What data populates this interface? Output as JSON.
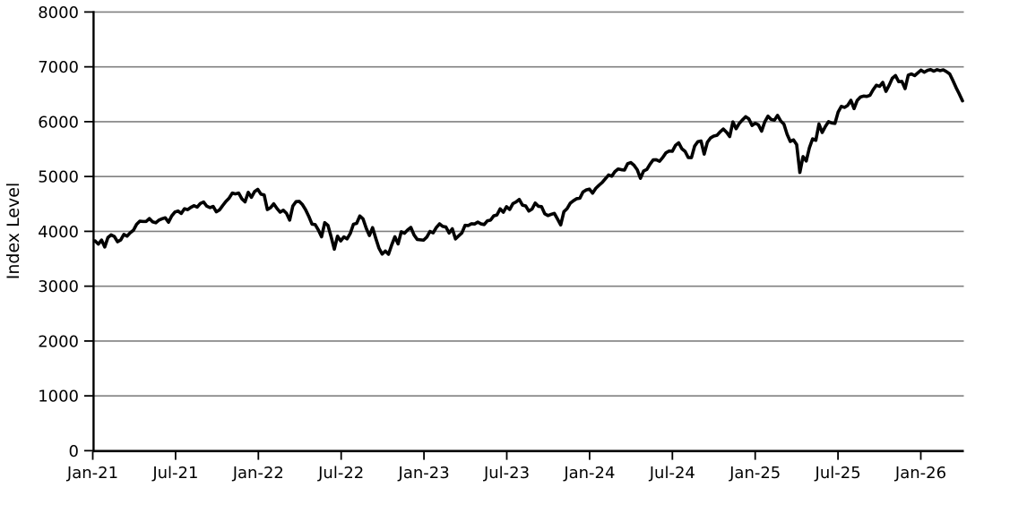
{
  "figure": {
    "background_color": "#ffffff"
  },
  "chart_data": {
    "type": "line",
    "title": "",
    "xlabel": "",
    "ylabel": "Index Level",
    "legend": null,
    "grid": "horizontal",
    "line_color": "#000000",
    "grid_color": "#808080",
    "axis_color": "#000000",
    "ylim": [
      0,
      8000
    ],
    "y_tick_values": [
      0,
      1000,
      2000,
      3000,
      4000,
      5000,
      6000,
      7000,
      8000
    ],
    "y_tick_labels": [
      "0",
      "1000",
      "2000",
      "3000",
      "4000",
      "5000",
      "6000",
      "7000",
      "8000"
    ],
    "x_tick_labels": [
      "Jan-21",
      "Jul-21",
      "Jan-22",
      "Jul-22",
      "Jan-23",
      "Jul-23",
      "Jan-24",
      "Jul-24",
      "Jan-25",
      "Jul-25",
      "Jan-26"
    ],
    "x_frequency": "weekly",
    "x_start": "Jan-21",
    "values": [
      3825,
      3768,
      3841,
      3714,
      3887,
      3935,
      3907,
      3811,
      3842,
      3943,
      3913,
      3975,
      4020,
      4129,
      4185,
      4180,
      4181,
      4233,
      4174,
      4156,
      4204,
      4230,
      4247,
      4166,
      4281,
      4352,
      4370,
      4327,
      4412,
      4395,
      4437,
      4468,
      4442,
      4509,
      4535,
      4459,
      4433,
      4455,
      4357,
      4391,
      4471,
      4545,
      4605,
      4698,
      4683,
      4698,
      4594,
      4538,
      4712,
      4621,
      4725,
      4766,
      4677,
      4663,
      4398,
      4432,
      4501,
      4419,
      4349,
      4385,
      4329,
      4204,
      4463,
      4543,
      4546,
      4488,
      4393,
      4272,
      4132,
      4123,
      4024,
      3901,
      4158,
      4109,
      3901,
      3675,
      3912,
      3825,
      3899,
      3863,
      3962,
      4130,
      4145,
      4280,
      4228,
      4058,
      3924,
      4067,
      3873,
      3693,
      3586,
      3640,
      3583,
      3753,
      3901,
      3771,
      3993,
      3965,
      4026,
      4072,
      3934,
      3852,
      3845,
      3839,
      3895,
      3999,
      3973,
      4071,
      4136,
      4090,
      4079,
      3970,
      4046,
      3862,
      3917,
      3971,
      4109,
      4105,
      4138,
      4134,
      4169,
      4136,
      4124,
      4192,
      4205,
      4282,
      4299,
      4410,
      4348,
      4450,
      4399,
      4505,
      4536,
      4582,
      4478,
      4464,
      4370,
      4406,
      4516,
      4457,
      4450,
      4320,
      4288,
      4309,
      4328,
      4224,
      4117,
      4358,
      4415,
      4514,
      4559,
      4595,
      4604,
      4719,
      4755,
      4770,
      4697,
      4784,
      4840,
      4891,
      4959,
      5027,
      5006,
      5089,
      5137,
      5124,
      5117,
      5234,
      5254,
      5204,
      5123,
      4967,
      5100,
      5128,
      5223,
      5303,
      5305,
      5278,
      5347,
      5432,
      5465,
      5460,
      5567,
      5615,
      5505,
      5459,
      5347,
      5344,
      5554,
      5635,
      5648,
      5408,
      5626,
      5703,
      5738,
      5751,
      5815,
      5865,
      5808,
      5729,
      5996,
      5871,
      5969,
      6032,
      6090,
      6051,
      5931,
      5971,
      5942,
      5827,
      5997,
      6101,
      6041,
      6026,
      6115,
      6013,
      5955,
      5770,
      5639,
      5668,
      5581,
      5074,
      5363,
      5283,
      5525,
      5687,
      5660,
      5958,
      5803,
      5912,
      6000,
      5977,
      5968,
      6173,
      6279,
      6260,
      6297,
      6389,
      6238,
      6389,
      6450,
      6467,
      6460,
      6482,
      6584,
      6664,
      6644,
      6716,
      6553,
      6664,
      6792,
      6840,
      6729,
      6734,
      6603,
      6849,
      6870,
      6840,
      6890,
      6940,
      6902,
      6935,
      6950,
      6921,
      6948,
      6930,
      6945,
      6912,
      6870,
      6750,
      6620,
      6505,
      6380
    ]
  }
}
